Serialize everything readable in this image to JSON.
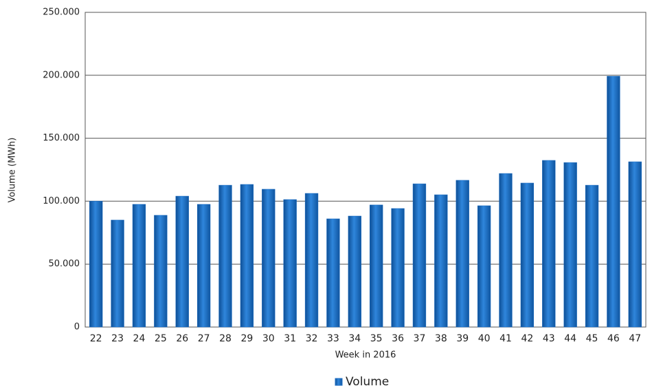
{
  "chart_data": {
    "type": "bar",
    "x_label": "Week in 2016",
    "y_label": "Volume (MWh)",
    "categories": [
      "22",
      "23",
      "24",
      "25",
      "26",
      "27",
      "28",
      "29",
      "30",
      "31",
      "32",
      "33",
      "34",
      "35",
      "36",
      "37",
      "38",
      "39",
      "40",
      "41",
      "42",
      "43",
      "44",
      "45",
      "46",
      "47"
    ],
    "series": [
      {
        "name": "Volume",
        "color": "#1f6fc4",
        "values": [
          100000,
          85000,
          97500,
          88800,
          104000,
          97500,
          112700,
          113300,
          109500,
          101300,
          106200,
          86000,
          88200,
          97000,
          94200,
          113800,
          105100,
          116600,
          96400,
          122000,
          114400,
          132400,
          130700,
          112700,
          199300,
          131300
        ]
      }
    ],
    "ylim": [
      0,
      250000
    ],
    "yticks": [
      0,
      {
        "value": 50000,
        "label": "50.000"
      },
      {
        "value": 100000,
        "label": "100.000"
      },
      {
        "value": 150000,
        "label": "150.000"
      },
      {
        "value": 200000,
        "label": "200.000"
      },
      {
        "value": 250000,
        "label": "250.000"
      }
    ],
    "grid": true,
    "legend": "bottom"
  }
}
